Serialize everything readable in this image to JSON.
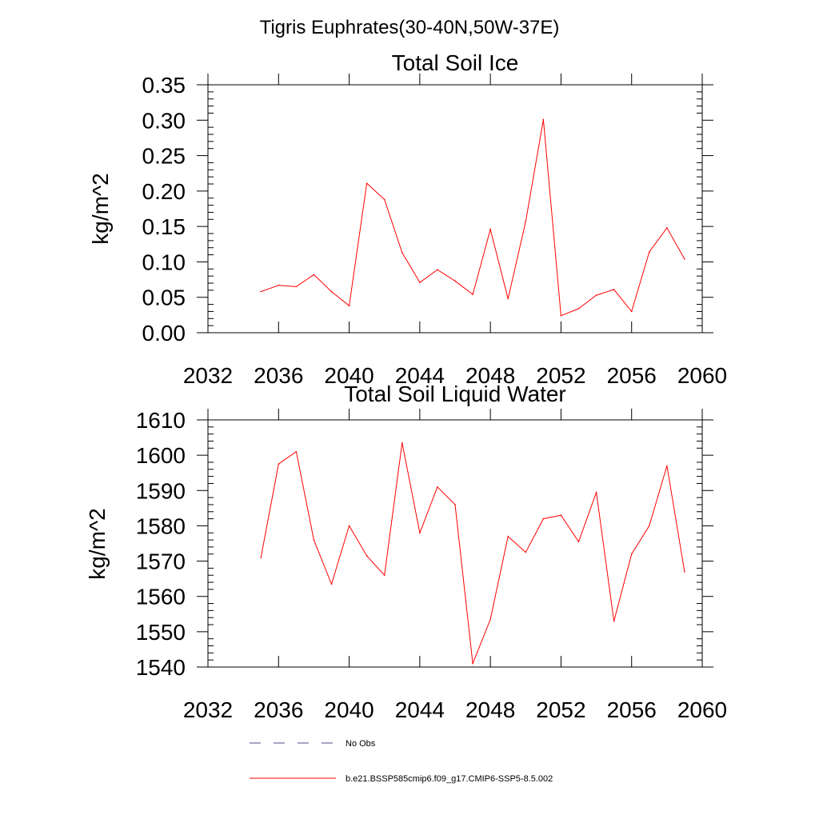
{
  "figure_title": "Tigris Euphrates(30-40N,50W-37E)",
  "legend": {
    "items": [
      {
        "label": "No Obs",
        "style": "dashed",
        "color": "#4a4a8a"
      },
      {
        "label": "b.e21.BSSP585cmip6.f09_g17.CMIP6-SSP5-8.5.002",
        "style": "solid",
        "color": "#ff0000"
      }
    ]
  },
  "chart_data": [
    {
      "type": "line",
      "title": "Total Soil Ice",
      "xlabel": "",
      "ylabel": "kg/m^2",
      "xlim": [
        2032,
        2060
      ],
      "ylim": [
        0,
        0.35
      ],
      "x_ticks": [
        2032,
        2036,
        2040,
        2044,
        2048,
        2052,
        2056,
        2060
      ],
      "y_ticks": [
        "0.00",
        "0.05",
        "0.10",
        "0.15",
        "0.20",
        "0.25",
        "0.30",
        "0.35"
      ],
      "grid": false,
      "series": [
        {
          "name": "b.e21.BSSP585cmip6.f09_g17.CMIP6-SSP5-8.5.002",
          "color": "#ff0000",
          "x": [
            2035,
            2036,
            2037,
            2038,
            2039,
            2040,
            2041,
            2042,
            2043,
            2044,
            2045,
            2046,
            2047,
            2048,
            2049,
            2050,
            2051,
            2052,
            2053,
            2054,
            2055,
            2056,
            2057,
            2058,
            2059
          ],
          "y": [
            0.058,
            0.067,
            0.065,
            0.082,
            0.058,
            0.038,
            0.211,
            0.188,
            0.113,
            0.071,
            0.089,
            0.073,
            0.054,
            0.146,
            0.048,
            0.157,
            0.301,
            0.024,
            0.034,
            0.053,
            0.061,
            0.03,
            0.114,
            0.148,
            0.104
          ]
        }
      ]
    },
    {
      "type": "line",
      "title": "Total Soil Liquid Water",
      "xlabel": "",
      "ylabel": "kg/m^2",
      "xlim": [
        2032,
        2060
      ],
      "ylim": [
        1540,
        1610
      ],
      "x_ticks": [
        2032,
        2036,
        2040,
        2044,
        2048,
        2052,
        2056,
        2060
      ],
      "y_ticks": [
        "1540",
        "1550",
        "1560",
        "1570",
        "1580",
        "1590",
        "1600",
        "1610"
      ],
      "grid": false,
      "series": [
        {
          "name": "b.e21.BSSP585cmip6.f09_g17.CMIP6-SSP5-8.5.002",
          "color": "#ff0000",
          "x": [
            2035,
            2036,
            2037,
            2038,
            2039,
            2040,
            2041,
            2042,
            2043,
            2044,
            2045,
            2046,
            2047,
            2048,
            2049,
            2050,
            2051,
            2052,
            2053,
            2054,
            2055,
            2056,
            2057,
            2058,
            2059
          ],
          "y": [
            1571,
            1597.5,
            1601,
            1576,
            1563.5,
            1580,
            1571.5,
            1566,
            1603.5,
            1578,
            1591,
            1586,
            1541,
            1553.5,
            1577,
            1572.5,
            1582,
            1583,
            1575.5,
            1589.5,
            1553,
            1572,
            1580,
            1597,
            1567
          ]
        }
      ]
    }
  ]
}
